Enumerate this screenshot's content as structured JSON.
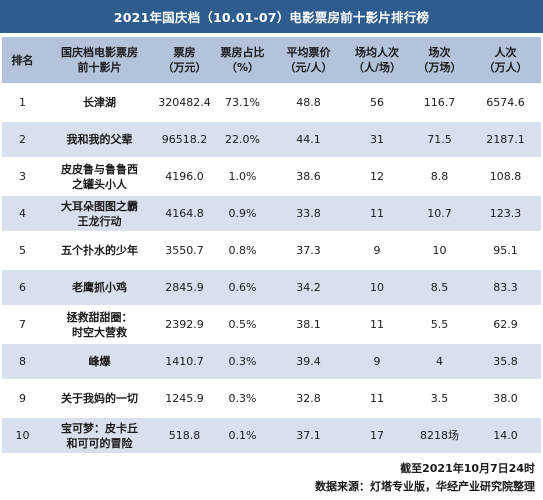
{
  "title": "2021年国庆档（10.01-07）电影票房前十影片排行榜",
  "headers": [
    "排名",
    "国庆档电影票房\n前十影片",
    "票房\n（万元）",
    "票房占比\n（%）",
    "平均票价\n（元/人）",
    "场均人次\n（人/场）",
    "场次\n（万场）",
    "人次\n（万人）"
  ],
  "rows": [
    [
      "1",
      "长津湖",
      "320482.4",
      "73.1%",
      "48.8",
      "56",
      "116.7",
      "6574.6"
    ],
    [
      "2",
      "我和我的父辈",
      "96518.2",
      "22.0%",
      "44.1",
      "31",
      "71.5",
      "2187.1"
    ],
    [
      "3",
      "皮皮鲁与鲁鲁西\n之罐头小人",
      "4196.0",
      "1.0%",
      "38.6",
      "12",
      "8.8",
      "108.8"
    ],
    [
      "4",
      "大耳朵图图之霸\n王龙行动",
      "4164.8",
      "0.9%",
      "33.8",
      "11",
      "10.7",
      "123.3"
    ],
    [
      "5",
      "五个扑水的少年",
      "3550.7",
      "0.8%",
      "37.3",
      "9",
      "10",
      "95.1"
    ],
    [
      "6",
      "老鹰抓小鸡",
      "2845.9",
      "0.6%",
      "34.2",
      "10",
      "8.5",
      "83.3"
    ],
    [
      "7",
      "拯救甜甜圈：\n时空大营救",
      "2392.9",
      "0.5%",
      "38.1",
      "11",
      "5.5",
      "62.9"
    ],
    [
      "8",
      "峰爆",
      "1410.7",
      "0.3%",
      "39.4",
      "9",
      "4",
      "35.8"
    ],
    [
      "9",
      "关于我妈的一切",
      "1245.9",
      "0.3%",
      "32.8",
      "11",
      "3.5",
      "38.0"
    ],
    [
      "10",
      "宝可梦：皮卡丘\n和可可的冒险",
      "518.8",
      "0.1%",
      "37.1",
      "17",
      "8218场",
      "14.0"
    ]
  ],
  "footer": {
    "date_note": "截至2021年10月7日24时",
    "source_note": "数据来源：灯塔专业版，华经产业研究院整理"
  },
  "colors": {
    "title_bg": "#2e5c8e",
    "header_bg": "#b3c3da",
    "stripe_bg": "#d7e0ec"
  }
}
